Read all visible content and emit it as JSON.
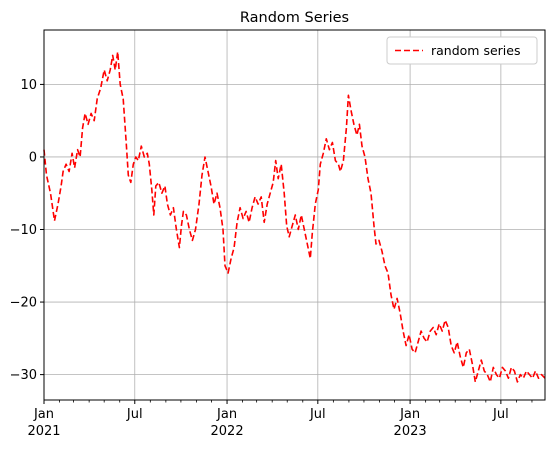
{
  "chart_data": {
    "type": "line",
    "title": "Random Series",
    "xlabel": "",
    "ylabel": "",
    "legend": {
      "placement": "top-right",
      "entries": [
        "random series"
      ]
    },
    "grid": true,
    "x_range": [
      "2021-01-01",
      "2023-09-27"
    ],
    "ylim": [
      -33.5,
      17.5
    ],
    "y_ticks": [
      -30,
      -20,
      -10,
      0,
      10
    ],
    "y_tick_labels": [
      "−30",
      "−20",
      "−10",
      "0",
      "10"
    ],
    "x_major_ticks": [
      {
        "date": "2021-01-01",
        "label": "Jan",
        "year_label": "2021"
      },
      {
        "date": "2021-07-01",
        "label": "Jul",
        "year_label": ""
      },
      {
        "date": "2022-01-01",
        "label": "Jan",
        "year_label": "2022"
      },
      {
        "date": "2022-07-01",
        "label": "Jul",
        "year_label": ""
      },
      {
        "date": "2023-01-01",
        "label": "Jan",
        "year_label": "2023"
      },
      {
        "date": "2023-07-01",
        "label": "Jul",
        "year_label": ""
      }
    ],
    "series": [
      {
        "name": "random series",
        "color": "#ff0000",
        "style": "dashed",
        "points": [
          [
            "2021-01-01",
            1.0
          ],
          [
            "2021-01-06",
            -2.5
          ],
          [
            "2021-01-14",
            -5.0
          ],
          [
            "2021-01-22",
            -8.8
          ],
          [
            "2021-01-29",
            -6.5
          ],
          [
            "2021-02-04",
            -4.0
          ],
          [
            "2021-02-08",
            -2.0
          ],
          [
            "2021-02-14",
            -1.0
          ],
          [
            "2021-02-20",
            -2.0
          ],
          [
            "2021-02-26",
            0.5
          ],
          [
            "2021-03-03",
            -1.5
          ],
          [
            "2021-03-09",
            1.0
          ],
          [
            "2021-03-14",
            0.0
          ],
          [
            "2021-03-19",
            4.0
          ],
          [
            "2021-03-24",
            6.0
          ],
          [
            "2021-03-30",
            4.5
          ],
          [
            "2021-04-05",
            6.0
          ],
          [
            "2021-04-11",
            5.0
          ],
          [
            "2021-04-17",
            8.0
          ],
          [
            "2021-04-24",
            9.5
          ],
          [
            "2021-05-01",
            12.0
          ],
          [
            "2021-05-07",
            10.5
          ],
          [
            "2021-05-13",
            12.0
          ],
          [
            "2021-05-18",
            14.0
          ],
          [
            "2021-05-23",
            12.0
          ],
          [
            "2021-05-28",
            14.5
          ],
          [
            "2021-06-02",
            10.0
          ],
          [
            "2021-06-08",
            8.0
          ],
          [
            "2021-06-14",
            2.0
          ],
          [
            "2021-06-18",
            -2.5
          ],
          [
            "2021-06-23",
            -3.5
          ],
          [
            "2021-06-28",
            -1.0
          ],
          [
            "2021-07-03",
            0.0
          ],
          [
            "2021-07-08",
            -0.5
          ],
          [
            "2021-07-14",
            1.5
          ],
          [
            "2021-07-20",
            0.0
          ],
          [
            "2021-07-26",
            0.5
          ],
          [
            "2021-07-30",
            -1.0
          ],
          [
            "2021-08-04",
            -4.5
          ],
          [
            "2021-08-08",
            -8.0
          ],
          [
            "2021-08-12",
            -4.0
          ],
          [
            "2021-08-18",
            -3.5
          ],
          [
            "2021-08-24",
            -5.0
          ],
          [
            "2021-08-30",
            -4.0
          ],
          [
            "2021-09-04",
            -6.5
          ],
          [
            "2021-09-10",
            -8.0
          ],
          [
            "2021-09-16",
            -7.0
          ],
          [
            "2021-09-22",
            -10.0
          ],
          [
            "2021-09-28",
            -12.5
          ],
          [
            "2021-10-02",
            -9.5
          ],
          [
            "2021-10-06",
            -7.5
          ],
          [
            "2021-10-12",
            -8.0
          ],
          [
            "2021-10-18",
            -10.0
          ],
          [
            "2021-10-24",
            -11.5
          ],
          [
            "2021-10-30",
            -10.0
          ],
          [
            "2021-11-06",
            -6.5
          ],
          [
            "2021-11-12",
            -2.5
          ],
          [
            "2021-11-18",
            0.0
          ],
          [
            "2021-11-24",
            -2.0
          ],
          [
            "2021-11-30",
            -4.0
          ],
          [
            "2021-12-06",
            -6.5
          ],
          [
            "2021-12-12",
            -5.0
          ],
          [
            "2021-12-18",
            -7.0
          ],
          [
            "2021-12-24",
            -10.0
          ],
          [
            "2021-12-28",
            -15.0
          ],
          [
            "2022-01-03",
            -16.0
          ],
          [
            "2022-01-09",
            -14.0
          ],
          [
            "2022-01-15",
            -12.5
          ],
          [
            "2022-01-21",
            -9.0
          ],
          [
            "2022-01-27",
            -7.0
          ],
          [
            "2022-02-02",
            -8.5
          ],
          [
            "2022-02-08",
            -7.5
          ],
          [
            "2022-02-14",
            -9.0
          ],
          [
            "2022-02-20",
            -7.0
          ],
          [
            "2022-02-26",
            -5.5
          ],
          [
            "2022-03-04",
            -6.5
          ],
          [
            "2022-03-10",
            -5.5
          ],
          [
            "2022-03-16",
            -9.0
          ],
          [
            "2022-03-22",
            -6.5
          ],
          [
            "2022-03-28",
            -5.0
          ],
          [
            "2022-04-03",
            -3.5
          ],
          [
            "2022-04-08",
            -0.5
          ],
          [
            "2022-04-13",
            -3.0
          ],
          [
            "2022-04-19",
            -1.0
          ],
          [
            "2022-04-25",
            -5.0
          ],
          [
            "2022-04-30",
            -9.5
          ],
          [
            "2022-05-05",
            -11.0
          ],
          [
            "2022-05-11",
            -9.5
          ],
          [
            "2022-05-17",
            -8.0
          ],
          [
            "2022-05-23",
            -10.0
          ],
          [
            "2022-05-29",
            -8.0
          ],
          [
            "2022-06-04",
            -10.0
          ],
          [
            "2022-06-10",
            -12.0
          ],
          [
            "2022-06-16",
            -14.0
          ],
          [
            "2022-06-20",
            -10.5
          ],
          [
            "2022-06-26",
            -6.5
          ],
          [
            "2022-07-02",
            -4.5
          ],
          [
            "2022-07-06",
            -1.0
          ],
          [
            "2022-07-12",
            0.5
          ],
          [
            "2022-07-18",
            2.5
          ],
          [
            "2022-07-24",
            1.0
          ],
          [
            "2022-07-30",
            2.0
          ],
          [
            "2022-08-05",
            -0.5
          ],
          [
            "2022-08-11",
            -1.0
          ],
          [
            "2022-08-15",
            -2.0
          ],
          [
            "2022-08-21",
            -0.5
          ],
          [
            "2022-08-27",
            4.0
          ],
          [
            "2022-08-31",
            8.5
          ],
          [
            "2022-09-05",
            6.5
          ],
          [
            "2022-09-11",
            4.5
          ],
          [
            "2022-09-17",
            3.0
          ],
          [
            "2022-09-22",
            4.5
          ],
          [
            "2022-09-27",
            1.5
          ],
          [
            "2022-10-03",
            0.0
          ],
          [
            "2022-10-09",
            -3.0
          ],
          [
            "2022-10-15",
            -5.0
          ],
          [
            "2022-10-21",
            -9.5
          ],
          [
            "2022-10-25",
            -12.0
          ],
          [
            "2022-10-31",
            -11.5
          ],
          [
            "2022-11-06",
            -13.0
          ],
          [
            "2022-11-12",
            -15.0
          ],
          [
            "2022-11-18",
            -16.0
          ],
          [
            "2022-11-24",
            -19.0
          ],
          [
            "2022-11-30",
            -21.0
          ],
          [
            "2022-12-06",
            -19.5
          ],
          [
            "2022-12-12",
            -21.5
          ],
          [
            "2022-12-18",
            -24.0
          ],
          [
            "2022-12-24",
            -26.0
          ],
          [
            "2022-12-30",
            -24.5
          ],
          [
            "2023-01-05",
            -26.5
          ],
          [
            "2023-01-11",
            -27.0
          ],
          [
            "2023-01-17",
            -25.5
          ],
          [
            "2023-01-23",
            -24.0
          ],
          [
            "2023-01-29",
            -25.0
          ],
          [
            "2023-02-04",
            -25.5
          ],
          [
            "2023-02-10",
            -24.0
          ],
          [
            "2023-02-16",
            -23.5
          ],
          [
            "2023-02-22",
            -24.5
          ],
          [
            "2023-02-28",
            -23.0
          ],
          [
            "2023-03-06",
            -24.0
          ],
          [
            "2023-03-12",
            -22.5
          ],
          [
            "2023-03-18",
            -23.5
          ],
          [
            "2023-03-24",
            -26.0
          ],
          [
            "2023-03-30",
            -27.0
          ],
          [
            "2023-04-05",
            -25.5
          ],
          [
            "2023-04-11",
            -27.5
          ],
          [
            "2023-04-17",
            -29.0
          ],
          [
            "2023-04-23",
            -27.0
          ],
          [
            "2023-04-29",
            -26.5
          ],
          [
            "2023-05-05",
            -28.5
          ],
          [
            "2023-05-11",
            -31.0
          ],
          [
            "2023-05-17",
            -29.5
          ],
          [
            "2023-05-23",
            -28.0
          ],
          [
            "2023-05-29",
            -29.5
          ],
          [
            "2023-06-04",
            -30.0
          ],
          [
            "2023-06-10",
            -31.0
          ],
          [
            "2023-06-16",
            -29.0
          ],
          [
            "2023-06-22",
            -30.0
          ],
          [
            "2023-06-28",
            -30.5
          ],
          [
            "2023-07-04",
            -29.0
          ],
          [
            "2023-07-10",
            -29.5
          ],
          [
            "2023-07-16",
            -30.5
          ],
          [
            "2023-07-22",
            -29.0
          ],
          [
            "2023-07-28",
            -29.5
          ],
          [
            "2023-08-03",
            -31.0
          ],
          [
            "2023-08-09",
            -30.0
          ],
          [
            "2023-08-15",
            -30.5
          ],
          [
            "2023-08-21",
            -29.5
          ],
          [
            "2023-08-27",
            -30.0
          ],
          [
            "2023-09-02",
            -30.5
          ],
          [
            "2023-09-08",
            -29.5
          ],
          [
            "2023-09-14",
            -30.5
          ],
          [
            "2023-09-20",
            -30.0
          ],
          [
            "2023-09-27",
            -30.5
          ]
        ]
      }
    ]
  }
}
